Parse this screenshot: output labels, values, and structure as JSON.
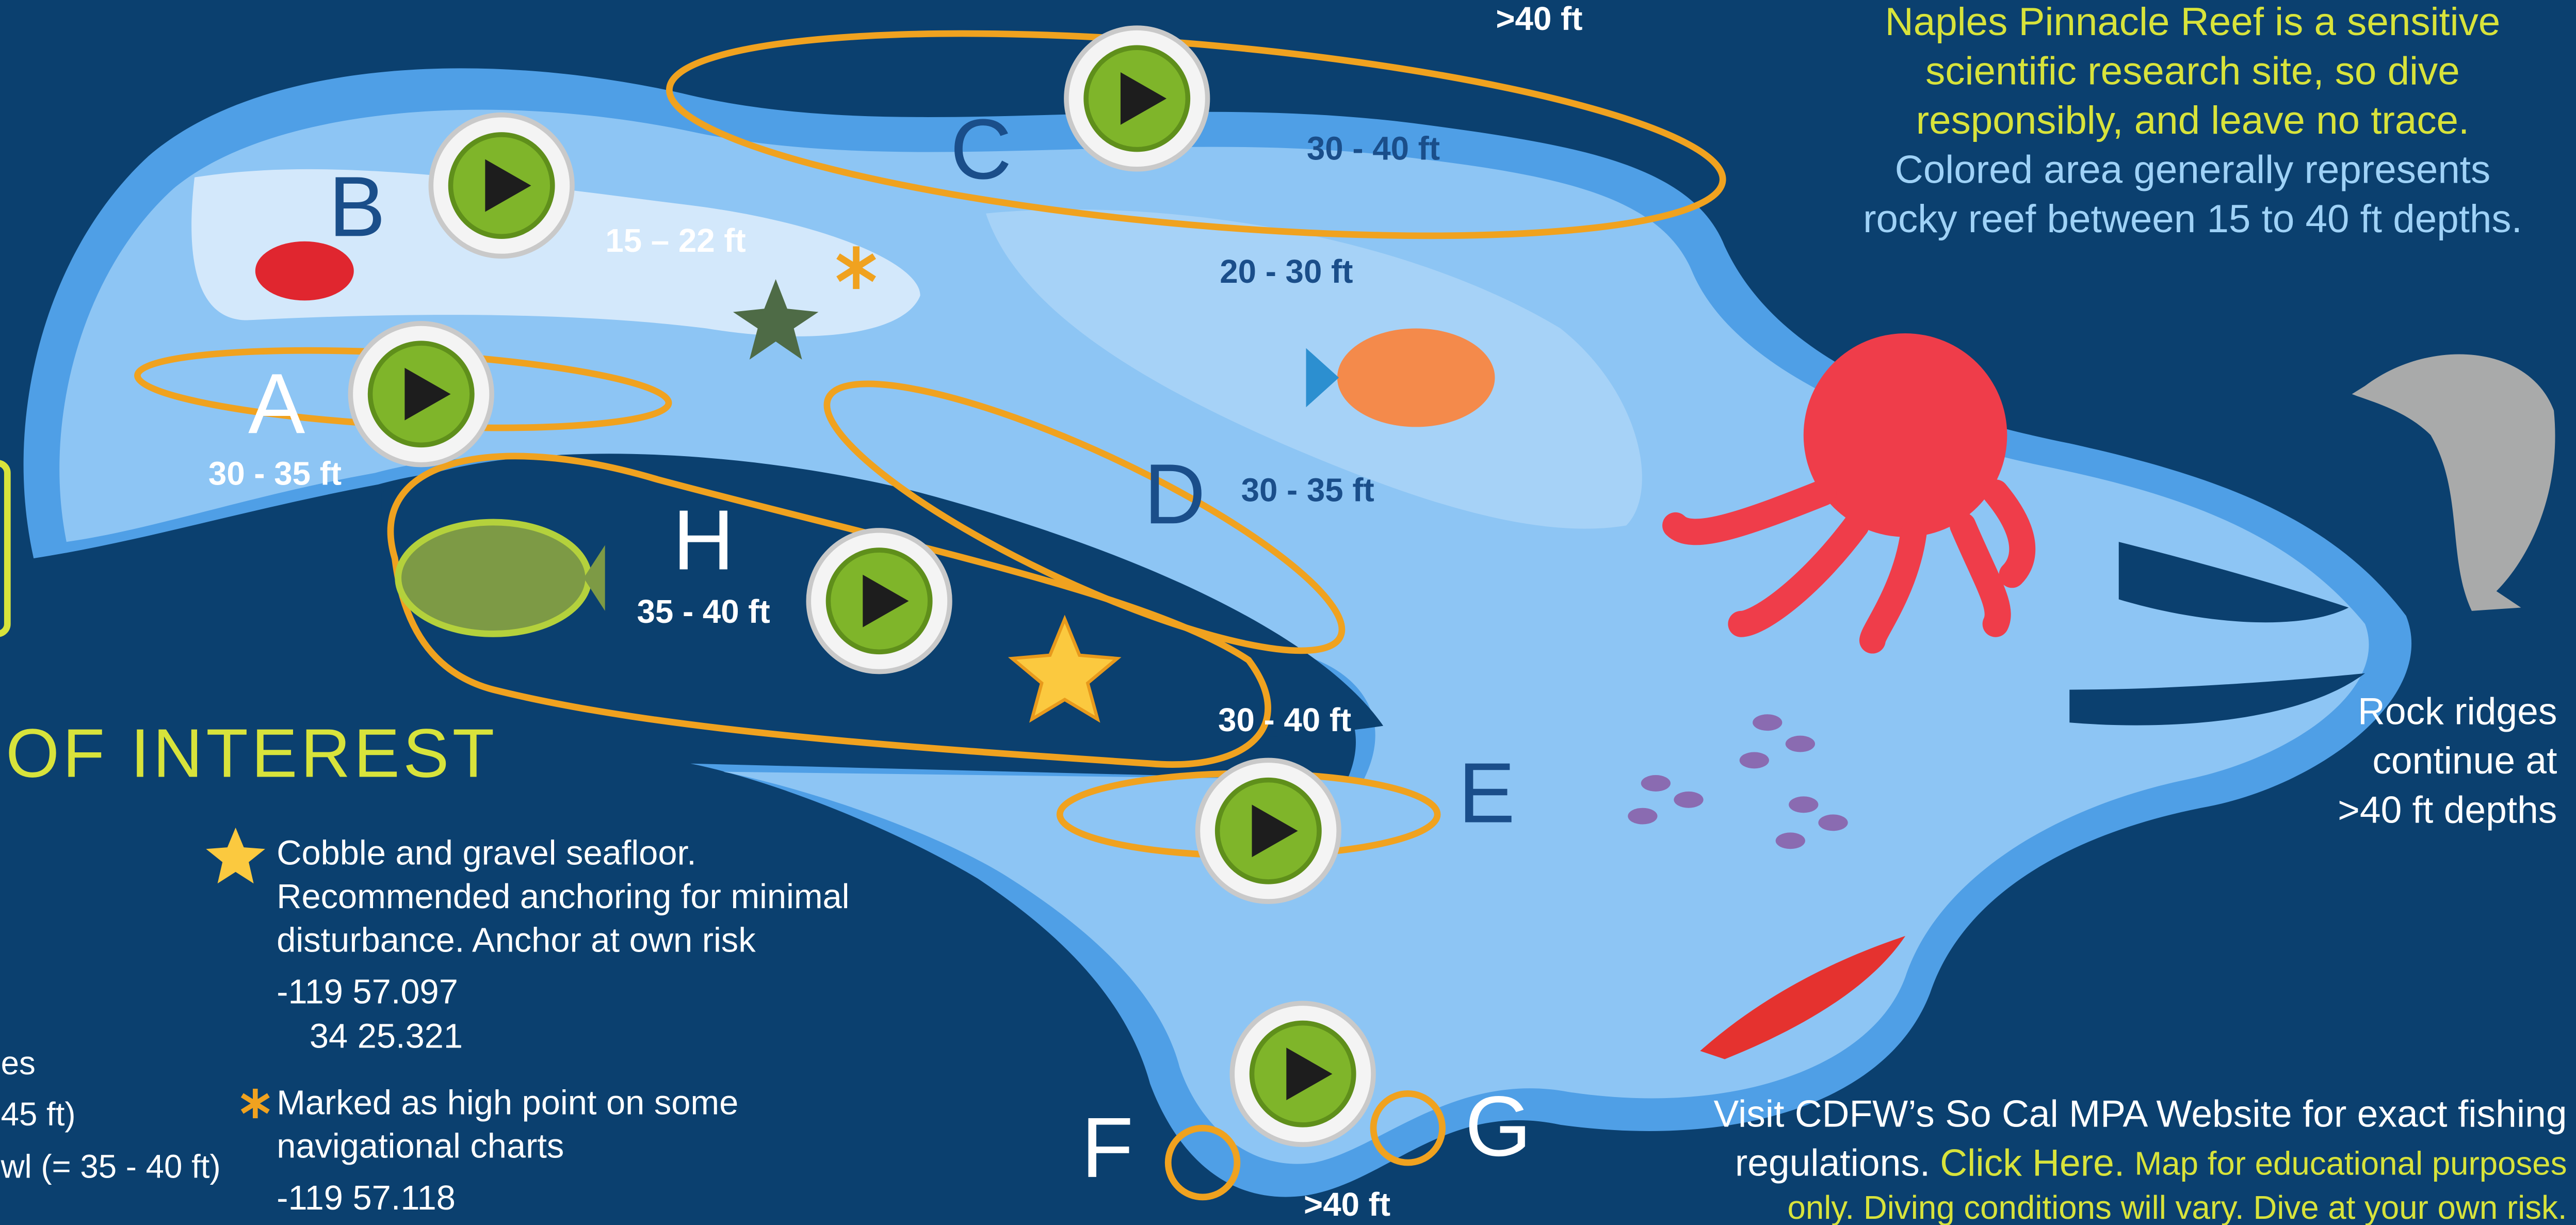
{
  "top_depth": ">40 ft",
  "notice": {
    "yellow_lines": [
      "Naples Pinnacle Reef is a sensitive",
      "scientific research site, so dive",
      "responsibly, and leave no trace."
    ],
    "blue_lines": [
      "Colored area generally represents",
      "rocky reef between 15 to 40 ft depths."
    ]
  },
  "sites": [
    "A",
    "B",
    "C",
    "D",
    "E",
    "F",
    "G",
    "H"
  ],
  "depth_labels": [
    "30 - 40 ft",
    "15 – 22 ft",
    "20 - 30 ft",
    "30 - 35 ft",
    "30 - 35 ft",
    "35 - 40 ft",
    "30 - 40 ft",
    ">40 ft"
  ],
  "section_heading": "OF INTEREST",
  "legend": [
    {
      "lines": [
        "Cobble and gravel seafloor.",
        "Recommended anchoring for minimal",
        "disturbance. Anchor at own risk"
      ],
      "coords": [
        "-119 57.097",
        "34 25.321"
      ]
    },
    {
      "lines": [
        "Marked as high point on some",
        "navigational charts"
      ],
      "coords": [
        "-119 57.118"
      ]
    }
  ],
  "left_partial": [
    "es",
    "45 ft)",
    "wl (= 35 - 40 ft)"
  ],
  "rock_ridges": [
    "Rock ridges",
    "continue at",
    ">40 ft depths"
  ],
  "footer": {
    "line1": "Visit CDFW’s So Cal MPA Website for exact fishing",
    "line2_start": "regulations.",
    "link": "Click Here.",
    "line2_end": "Map for educational purposes",
    "line3": "only. Diving conditions will vary. Dive at your own risk."
  }
}
